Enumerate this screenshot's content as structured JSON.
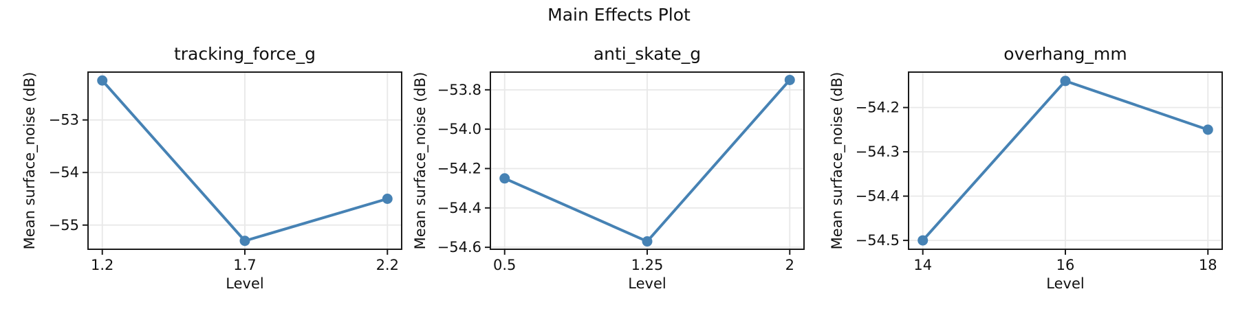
{
  "figure": {
    "suptitle": "Main Effects Plot"
  },
  "chart_data": {
    "type": "line",
    "suptitle": "Main Effects Plot",
    "grid": true,
    "legend": "none",
    "style": {
      "line_color": "#4682B4",
      "marker": "o",
      "grid_color": "#e8e8e8",
      "spine_color": "#1a1a1a",
      "text_color": "#111111",
      "background": "#ffffff"
    },
    "subplots": [
      {
        "title": "tracking_force_g",
        "xlabel": "Level",
        "ylabel": "Mean surface_noise (dB)",
        "x": [
          1.2,
          1.7,
          2.2
        ],
        "x_tick_labels": [
          "1.2",
          "1.7",
          "2.2"
        ],
        "y": [
          -52.25,
          -55.3,
          -54.5
        ],
        "xlim": [
          1.15,
          2.25
        ],
        "ylim": [
          -55.46,
          -52.09
        ],
        "yticks": [
          -53,
          -54,
          -55
        ],
        "ytick_labels": [
          "−53",
          "−54",
          "−55"
        ]
      },
      {
        "title": "anti_skate_g",
        "xlabel": "Level",
        "ylabel": "Mean surface_noise (dB)",
        "x": [
          0.5,
          1.25,
          2
        ],
        "x_tick_labels": [
          "0.5",
          "1.25",
          "2"
        ],
        "y": [
          -54.25,
          -54.57,
          -53.75
        ],
        "xlim": [
          0.425,
          2.075
        ],
        "ylim": [
          -54.61,
          -53.71
        ],
        "yticks": [
          -53.8,
          -54.0,
          -54.2,
          -54.4,
          -54.6
        ],
        "ytick_labels": [
          "−53.8",
          "−54.0",
          "−54.2",
          "−54.4",
          "−54.6"
        ]
      },
      {
        "title": "overhang_mm",
        "xlabel": "Level",
        "ylabel": "Mean surface_noise (dB)",
        "x": [
          14,
          16,
          18
        ],
        "x_tick_labels": [
          "14",
          "16",
          "18"
        ],
        "y": [
          -54.5,
          -54.14,
          -54.25
        ],
        "xlim": [
          13.8,
          18.2
        ],
        "ylim": [
          -54.52,
          -54.12
        ],
        "yticks": [
          -54.2,
          -54.3,
          -54.4,
          -54.5
        ],
        "ytick_labels": [
          "−54.2",
          "−54.3",
          "−54.4",
          "−54.5"
        ]
      }
    ]
  }
}
